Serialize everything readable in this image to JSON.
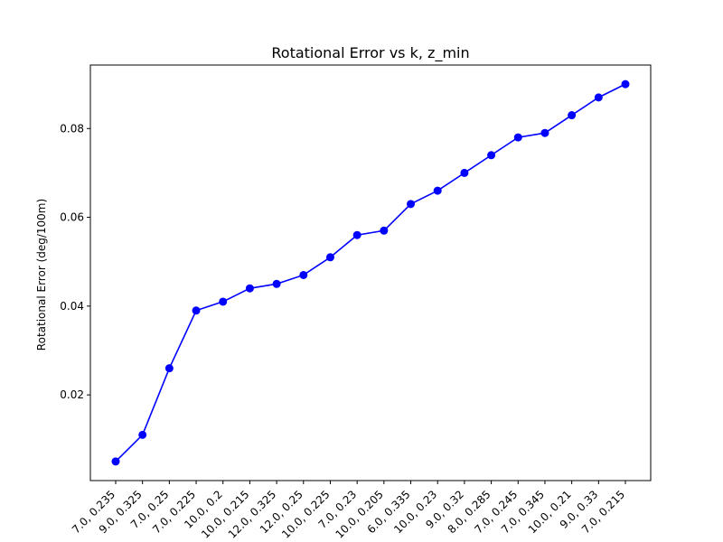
{
  "chart_data": {
    "type": "line",
    "title": "Rotational Error vs k, z_min",
    "xlabel": "",
    "ylabel": "Rotational Error (deg/100m)",
    "categories": [
      "7.0, 0.235",
      "9.0, 0.325",
      "7.0, 0.25",
      "7.0, 0.225",
      "10.0, 0.2",
      "10.0, 0.215",
      "12.0, 0.325",
      "12.0, 0.25",
      "10.0, 0.225",
      "7.0, 0.23",
      "10.0, 0.205",
      "6.0, 0.335",
      "10.0, 0.23",
      "9.0, 0.32",
      "8.0, 0.285",
      "7.0, 0.245",
      "7.0, 0.345",
      "10.0, 0.21",
      "9.0, 0.33",
      "7.0, 0.215"
    ],
    "series": [
      {
        "values": [
          0.005,
          0.011,
          0.026,
          0.039,
          0.041,
          0.044,
          0.045,
          0.047,
          0.051,
          0.056,
          0.057,
          0.063,
          0.066,
          0.07,
          0.074,
          0.078,
          0.079,
          0.083,
          0.087,
          0.09
        ],
        "color": "#0000ff",
        "marker": "circle"
      }
    ],
    "ylim": [
      0.0007,
      0.0943
    ],
    "yticks": [
      "0.02",
      "0.04",
      "0.06",
      "0.08"
    ],
    "grid": false,
    "legend": "none"
  }
}
